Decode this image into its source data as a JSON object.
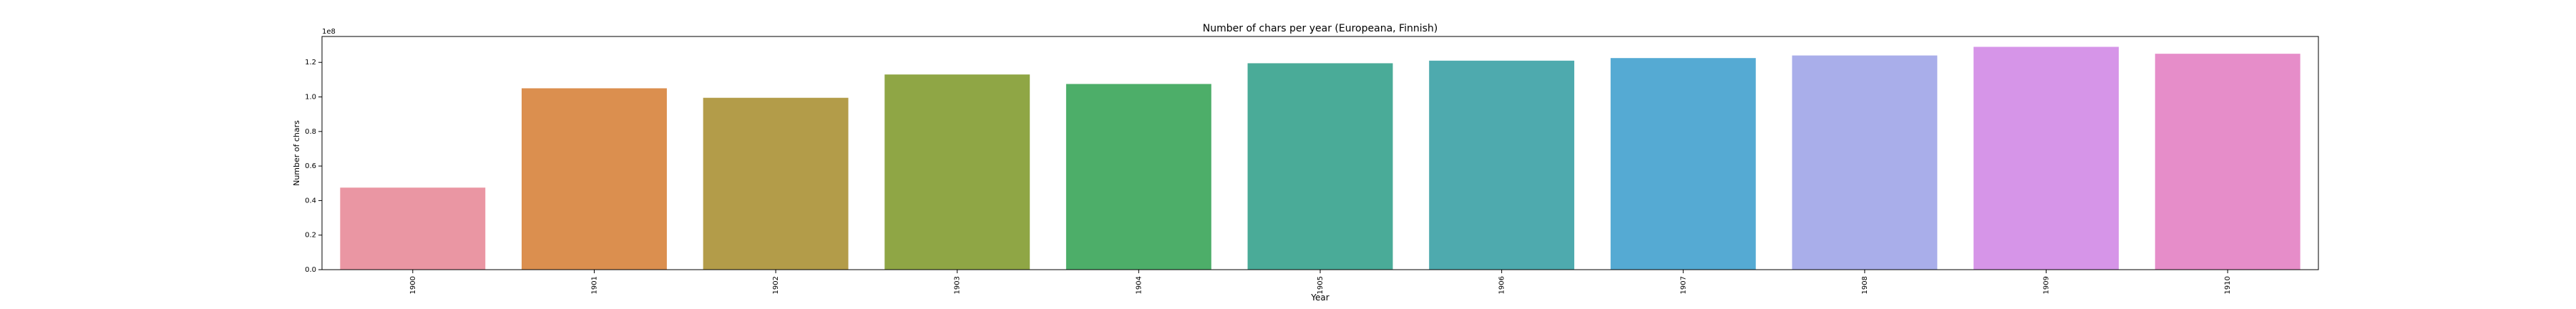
{
  "chart_data": {
    "type": "bar",
    "title": "Number of chars per year (Europeana, Finnish)",
    "xlabel": "Year",
    "ylabel": "Number of chars",
    "y_multiplier_label": "1e8",
    "categories": [
      "1900",
      "1901",
      "1902",
      "1903",
      "1904",
      "1905",
      "1906",
      "1907",
      "1908",
      "1909",
      "1910"
    ],
    "values": [
      47500000,
      105000000,
      99500000,
      113000000,
      107500000,
      119500000,
      121000000,
      122500000,
      124000000,
      129000000,
      125000000
    ],
    "colors": [
      "#ea96a3",
      "#db8f4f",
      "#b39c49",
      "#8fa645",
      "#4dae69",
      "#4aab98",
      "#4eaaae",
      "#55aad3",
      "#a9aeea",
      "#d695e8",
      "#e68dc9"
    ],
    "ylim": [
      0,
      135000000
    ],
    "yticks": [
      0,
      20000000,
      40000000,
      60000000,
      80000000,
      100000000,
      120000000
    ],
    "ytick_labels": [
      "0.0",
      "0.2",
      "0.4",
      "0.6",
      "0.8",
      "1.0",
      "1.2"
    ],
    "grid": false,
    "legend": null
  }
}
